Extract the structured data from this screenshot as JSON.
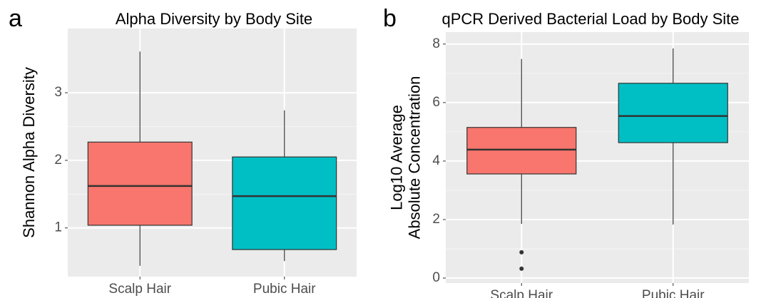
{
  "chart_data": [
    {
      "type": "box",
      "panel_label": "a",
      "title": "Alpha Diversity by Body Site",
      "ylabel": [
        "Shannon Alpha Diversity"
      ],
      "categories": [
        "Scalp Hair",
        "Pubic Hair"
      ],
      "colors": [
        "#f8766d",
        "#00bfc4"
      ],
      "boxes": [
        {
          "whisker_low": 0.44,
          "q1": 1.04,
          "median": 1.62,
          "q3": 2.27,
          "whisker_high": 3.61,
          "outliers": []
        },
        {
          "whisker_low": 0.51,
          "q1": 0.68,
          "median": 1.47,
          "q3": 2.05,
          "whisker_high": 2.74,
          "outliers": []
        }
      ],
      "ylim": [
        0.28,
        3.95
      ],
      "yticks": [
        1,
        2,
        3
      ],
      "grid": true
    },
    {
      "type": "box",
      "panel_label": "b",
      "title": "qPCR Derived Bacterial Load by Body Site",
      "ylabel": [
        "Log10 Average",
        "Absolute Concentration"
      ],
      "categories": [
        "Scalp Hair",
        "Pubic Hair"
      ],
      "colors": [
        "#f8766d",
        "#00bfc4"
      ],
      "boxes": [
        {
          "whisker_low": 1.85,
          "q1": 3.56,
          "median": 4.39,
          "q3": 5.15,
          "whisker_high": 7.49,
          "outliers": [
            0.88,
            0.32
          ]
        },
        {
          "whisker_low": 1.83,
          "q1": 4.63,
          "median": 5.54,
          "q3": 6.66,
          "whisker_high": 7.85,
          "outliers": []
        }
      ],
      "ylim": [
        -0.17,
        8.41
      ],
      "yticks": [
        0,
        2,
        4,
        6,
        8
      ],
      "grid": true
    }
  ]
}
